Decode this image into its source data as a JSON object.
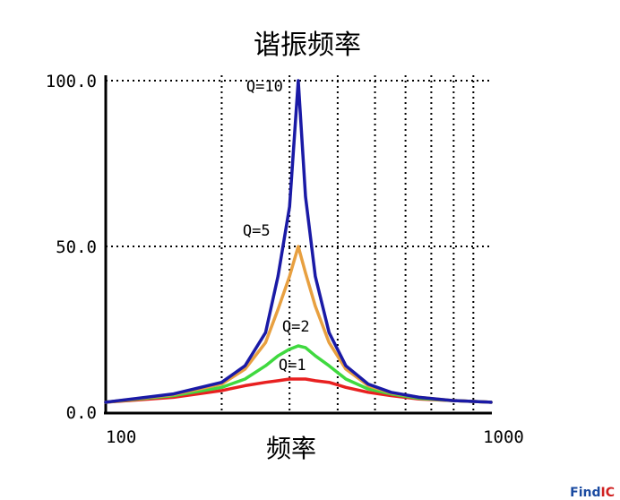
{
  "chart_data": {
    "type": "line",
    "title": "谐振频率",
    "xlabel": "频率",
    "ylabel": "",
    "x_scale": "log",
    "xlim": [
      100,
      1000
    ],
    "ylim": [
      0,
      100
    ],
    "x_ticks": [
      {
        "value": 100,
        "label": "100"
      },
      {
        "value": 1000,
        "label": "1000"
      }
    ],
    "y_ticks": [
      {
        "value": 0,
        "label": "0.0"
      },
      {
        "value": 50,
        "label": "50.0"
      },
      {
        "value": 100,
        "label": "100.0"
      }
    ],
    "grid": true,
    "grid_x": [
      200,
      300,
      400,
      500,
      600,
      700,
      800,
      900
    ],
    "grid_y": [
      50,
      100
    ],
    "x": [
      100,
      150,
      200,
      230,
      260,
      280,
      300,
      316,
      330,
      350,
      380,
      420,
      480,
      550,
      650,
      800,
      1000
    ],
    "series": [
      {
        "name": "Q=10",
        "color": "#1a1aa6",
        "values": [
          3,
          5.5,
          9,
          14,
          24,
          41,
          62,
          100,
          65,
          41,
          24,
          14,
          8.5,
          6,
          4.5,
          3.5,
          3
        ]
      },
      {
        "name": "Q=5",
        "color": "#e8a040",
        "values": [
          3,
          5.3,
          8.5,
          13,
          21,
          31,
          41,
          50,
          42,
          32,
          21,
          13,
          8,
          5.8,
          4.5,
          3.5,
          3
        ]
      },
      {
        "name": "Q=2",
        "color": "#3fd93f",
        "values": [
          3,
          5,
          7.5,
          10,
          14,
          17,
          19,
          20,
          19.5,
          17,
          14,
          10,
          7,
          5.5,
          4.2,
          3.5,
          3
        ]
      },
      {
        "name": "Q=1",
        "color": "#e82020",
        "values": [
          3,
          4.5,
          6.5,
          8,
          9,
          9.5,
          10,
          10,
          10,
          9.5,
          9,
          7.5,
          6,
          5,
          4,
          3.5,
          3
        ]
      }
    ],
    "annotations": [
      "Q=10",
      "Q=5",
      "Q=2",
      "Q=1"
    ]
  },
  "watermark": {
    "part1": "Find",
    "part2": "IC",
    "color1": "#1a4aa0",
    "color2": "#d02020"
  }
}
